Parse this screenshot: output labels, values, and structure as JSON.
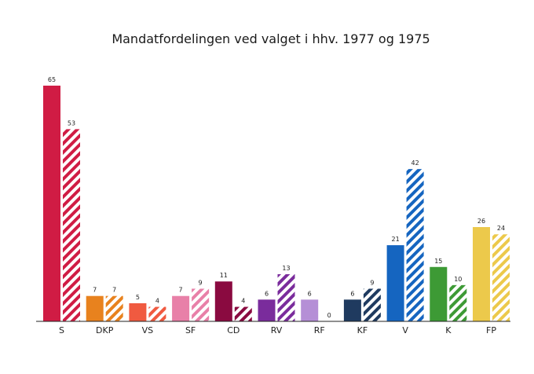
{
  "chart_data": {
    "type": "bar",
    "title": "Mandatfordelingen ved valget i hhv. 1977 og 1975",
    "xlabel": "",
    "ylabel": "",
    "ylim": [
      0,
      65
    ],
    "grid": false,
    "legend": "none",
    "categories": [
      "S",
      "DKP",
      "VS",
      "SF",
      "CD",
      "RV",
      "RF",
      "KF",
      "V",
      "K",
      "FP"
    ],
    "colors": [
      "#d01c44",
      "#e8821e",
      "#f05a40",
      "#e880a8",
      "#8a0a40",
      "#7a2c9c",
      "#b58fd6",
      "#1f3a5f",
      "#1565c0",
      "#3d9a35",
      "#ecc94b"
    ],
    "series": [
      {
        "values": [
          65,
          7,
          5,
          7,
          11,
          6,
          6,
          6,
          21,
          15,
          26
        ],
        "style": "solid"
      },
      {
        "values": [
          53,
          7,
          4,
          9,
          4,
          13,
          0,
          9,
          42,
          10,
          24
        ],
        "style": "hatched"
      }
    ]
  }
}
